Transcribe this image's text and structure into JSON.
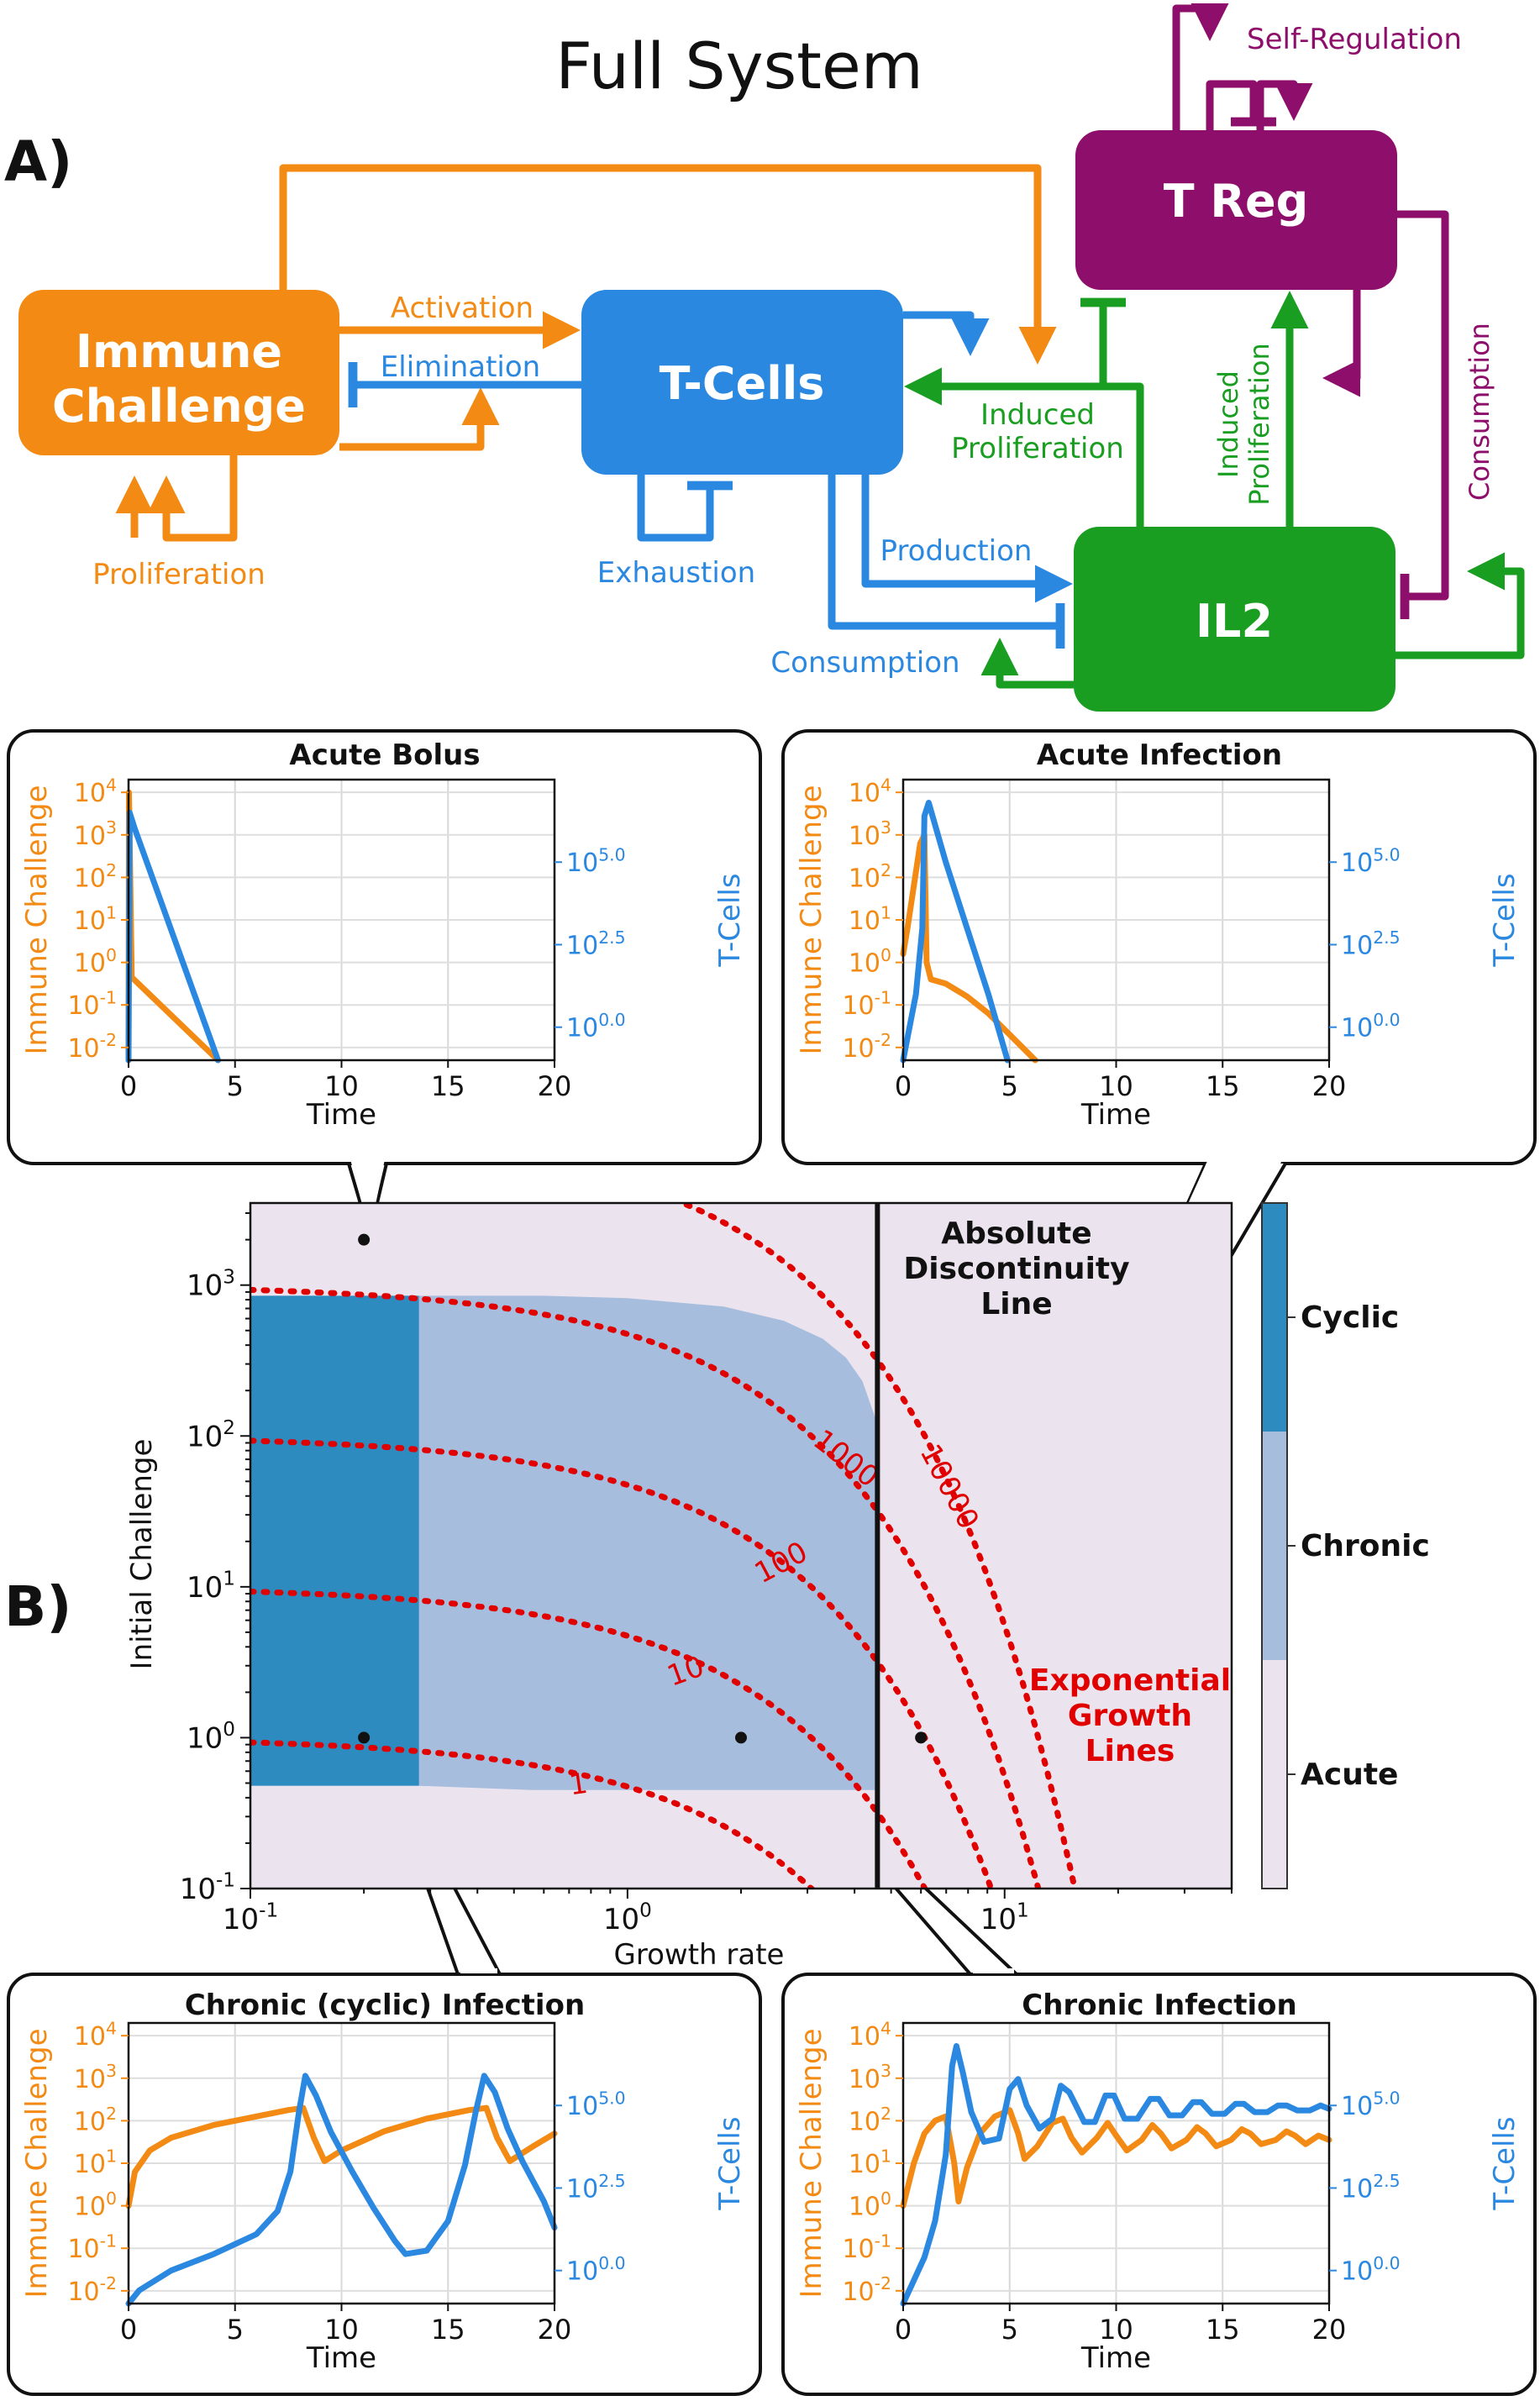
{
  "title": "Full System",
  "panel_labels": {
    "a": "A)",
    "b": "B)"
  },
  "colors": {
    "immune": "#f28a14",
    "tcell": "#2b88e0",
    "il2": "#1a9e22",
    "treg": "#8e0f6b",
    "cyclic": "#2e8bbf",
    "chronic": "#a7bddd",
    "acute": "#ebe4ef",
    "expline": "#e00000"
  },
  "diagram": {
    "nodes": {
      "immune": "Immune\nChallenge",
      "tcells": "T-Cells",
      "treg": "T Reg",
      "il2": "IL2"
    },
    "edges": {
      "activation": "Activation",
      "elimination": "Elimination",
      "proliferation": "Proliferation",
      "exhaustion": "Exhaustion",
      "production": "Production",
      "consumption_t": "Consumption",
      "induced_prolif_t": "Induced\nProliferation",
      "induced_prolif_treg": "Induced\nProliferation",
      "consumption_treg": "Consumption",
      "self_regulation": "Self-Regulation"
    }
  },
  "time_plots": {
    "xlabel": "Time",
    "ylabel_left": "Immune Challenge",
    "ylabel_right": "T-Cells",
    "xticks": [
      "0",
      "5",
      "10",
      "15",
      "20"
    ],
    "yticks_left": [
      "10^4",
      "10^3",
      "10^2",
      "10^1",
      "10^0",
      "10^-1",
      "10^-2"
    ],
    "yticks_right": [
      "10^5.0",
      "10^2.5",
      "10^0.0"
    ]
  },
  "phase": {
    "xlabel": "Growth rate",
    "ylabel": "Initial Challenge",
    "xticks": [
      "10^-1",
      "10^0",
      "10^1"
    ],
    "yticks": [
      "10^3",
      "10^2",
      "10^1",
      "10^0",
      "10^-1"
    ],
    "line_labels": [
      "1",
      "10",
      "100",
      "1000",
      "10000"
    ],
    "discontinuity_label": "Absolute\nDiscontinuity\nLine",
    "growth_lines_label": "Exponential\nGrowth\nLines",
    "legend": [
      "Cyclic",
      "Chronic",
      "Acute"
    ]
  },
  "chart_data": [
    {
      "type": "line",
      "title": "Acute Bolus",
      "xlabel": "Time",
      "ylabel": "Immune Challenge",
      "y2label": "T-Cells",
      "xlim": [
        0,
        20
      ],
      "ylim": [
        -2.3,
        4.3
      ],
      "y2lim": [
        -1.0,
        7.5
      ],
      "series": [
        {
          "name": "Immune Challenge",
          "axis": "left",
          "x": [
            0,
            0.02,
            0.15,
            4.2
          ],
          "y": [
            -2.3,
            4.0,
            -0.35,
            -2.3
          ]
        },
        {
          "name": "T-Cells",
          "axis": "right",
          "x": [
            0,
            0.05,
            0.3,
            4.2
          ],
          "y": [
            -1.0,
            6.5,
            6.0,
            -1.0
          ]
        }
      ]
    },
    {
      "type": "line",
      "title": "Acute Infection",
      "xlabel": "Time",
      "ylabel": "Immune Challenge",
      "y2label": "T-Cells",
      "xlim": [
        0,
        20
      ],
      "ylim": [
        -2.3,
        4.3
      ],
      "y2lim": [
        -1.0,
        7.5
      ],
      "series": [
        {
          "name": "Immune Challenge",
          "axis": "left",
          "x": [
            0,
            0.2,
            0.5,
            0.8,
            1.0,
            1.1,
            1.3,
            2.0,
            3.0,
            4.0,
            5.0,
            6.2
          ],
          "y": [
            0.2,
            0.8,
            1.8,
            2.8,
            3.0,
            0.0,
            -0.4,
            -0.5,
            -0.8,
            -1.2,
            -1.7,
            -2.3
          ]
        },
        {
          "name": "T-Cells",
          "axis": "right",
          "x": [
            0,
            0.3,
            0.6,
            0.9,
            1.0,
            1.2,
            2.0,
            3.0,
            4.0,
            4.9
          ],
          "y": [
            -1.0,
            0.0,
            1.0,
            3.0,
            6.4,
            6.8,
            5.0,
            3.0,
            1.0,
            -1.0
          ]
        }
      ]
    },
    {
      "type": "line",
      "title": "Chronic (cyclic) Infection",
      "xlabel": "Time",
      "ylabel": "Immune Challenge",
      "y2label": "T-Cells",
      "xlim": [
        0,
        20
      ],
      "ylim": [
        -2.3,
        4.3
      ],
      "y2lim": [
        -1.0,
        7.5
      ],
      "series": [
        {
          "name": "Immune Challenge",
          "axis": "left",
          "x": [
            0,
            0.3,
            1,
            2,
            4,
            6,
            7.5,
            8.2,
            8.7,
            9.2,
            10,
            12,
            14,
            16,
            16.8,
            17.3,
            17.9,
            19,
            20
          ],
          "y": [
            0.0,
            0.8,
            1.3,
            1.6,
            1.9,
            2.1,
            2.25,
            2.3,
            1.6,
            1.05,
            1.3,
            1.75,
            2.05,
            2.25,
            2.3,
            1.6,
            1.05,
            1.4,
            1.7
          ]
        },
        {
          "name": "T-Cells",
          "axis": "right",
          "x": [
            0,
            0.5,
            2,
            4,
            6,
            7,
            7.6,
            8.0,
            8.3,
            8.8,
            9.5,
            10.5,
            11.5,
            12.5,
            13.0,
            14.0,
            15.0,
            15.8,
            16.3,
            16.7,
            17.2,
            17.8,
            18.5,
            19.5,
            20
          ],
          "y": [
            -1.0,
            -0.6,
            0.0,
            0.5,
            1.1,
            1.8,
            3.0,
            4.8,
            5.9,
            5.3,
            4.2,
            3.0,
            1.9,
            0.9,
            0.5,
            0.6,
            1.5,
            3.2,
            4.8,
            5.9,
            5.4,
            4.3,
            3.3,
            2.1,
            1.3
          ]
        }
      ]
    },
    {
      "type": "line",
      "title": "Chronic Infection",
      "xlabel": "Time",
      "ylabel": "Immune Challenge",
      "y2label": "T-Cells",
      "xlim": [
        0,
        20
      ],
      "ylim": [
        -2.3,
        4.3
      ],
      "y2lim": [
        -1.0,
        7.5
      ],
      "series": [
        {
          "name": "Immune Challenge",
          "axis": "left",
          "x": [
            0,
            0.5,
            1,
            1.5,
            2.0,
            2.4,
            2.6,
            3.0,
            3.6,
            4.3,
            5.0,
            5.4,
            5.7,
            6.3,
            7.0,
            7.5,
            7.9,
            8.4,
            9.1,
            9.6,
            10.0,
            10.5,
            11.2,
            11.7,
            12.1,
            12.6,
            13.3,
            13.8,
            14.2,
            14.7,
            15.4,
            15.9,
            16.3,
            16.8,
            17.5,
            18.0,
            18.4,
            18.9,
            19.5,
            20
          ],
          "y": [
            0.0,
            1.0,
            1.7,
            2.0,
            2.1,
            1.0,
            0.1,
            0.9,
            1.7,
            2.1,
            2.25,
            1.7,
            1.1,
            1.4,
            1.95,
            2.05,
            1.6,
            1.25,
            1.6,
            1.95,
            1.65,
            1.3,
            1.55,
            1.9,
            1.7,
            1.35,
            1.55,
            1.85,
            1.7,
            1.4,
            1.55,
            1.8,
            1.7,
            1.45,
            1.55,
            1.75,
            1.65,
            1.45,
            1.65,
            1.55
          ]
        },
        {
          "name": "T-Cells",
          "axis": "right",
          "x": [
            0,
            0.5,
            1.0,
            1.5,
            2.0,
            2.3,
            2.5,
            2.8,
            3.2,
            3.8,
            4.5,
            5.0,
            5.4,
            5.8,
            6.4,
            7.0,
            7.4,
            7.8,
            8.5,
            9.0,
            9.5,
            9.9,
            10.4,
            11.0,
            11.6,
            12.0,
            12.5,
            13.1,
            13.6,
            14.0,
            14.5,
            15.1,
            15.6,
            16.0,
            16.5,
            17.1,
            17.6,
            18.0,
            18.5,
            19.1,
            19.6,
            20
          ],
          "y": [
            -1.0,
            -0.3,
            0.4,
            1.5,
            3.5,
            6.2,
            6.8,
            6.0,
            4.8,
            3.9,
            4.0,
            5.5,
            5.8,
            5.0,
            4.3,
            4.6,
            5.6,
            5.4,
            4.5,
            4.5,
            5.3,
            5.3,
            4.6,
            4.6,
            5.2,
            5.2,
            4.7,
            4.7,
            5.1,
            5.1,
            4.75,
            4.75,
            5.05,
            5.05,
            4.8,
            4.8,
            5.0,
            5.0,
            4.85,
            4.85,
            5.0,
            4.9
          ]
        }
      ]
    },
    {
      "type": "heatmap",
      "xlabel": "Growth rate",
      "ylabel": "Initial Challenge",
      "xscale": "log",
      "yscale": "log",
      "xlim": [
        0.1,
        40
      ],
      "ylim": [
        0.1,
        3500
      ],
      "regions": [
        "Cyclic",
        "Chronic",
        "Acute"
      ],
      "cyclic_region": {
        "x": [
          0.1,
          0.28
        ],
        "y": [
          0.48,
          850
        ]
      },
      "chronic_lower_boundary": [
        [
          0.28,
          0.48
        ],
        [
          0.56,
          0.45
        ],
        [
          4.6,
          0.45
        ]
      ],
      "chronic_upper_boundary": [
        [
          0.28,
          850
        ],
        [
          0.6,
          850
        ],
        [
          1.0,
          820
        ],
        [
          1.8,
          720
        ],
        [
          2.6,
          580
        ],
        [
          3.3,
          440
        ],
        [
          3.8,
          330
        ],
        [
          4.2,
          230
        ],
        [
          4.6,
          120
        ]
      ],
      "discontinuity_x": 4.6,
      "exponential_growth_lines": [
        {
          "label": "1",
          "x0": 0.1,
          "y0": 0.93
        },
        {
          "label": "10",
          "x0": 0.1,
          "y0": 9.3
        },
        {
          "label": "100",
          "x0": 0.1,
          "y0": 93
        },
        {
          "label": "1000",
          "x0": 0.1,
          "y0": 930
        },
        {
          "label": "10000",
          "x0": 0.1,
          "y0": 9300
        }
      ],
      "sample_points": [
        [
          0.2,
          2000
        ],
        [
          0.2,
          1.0
        ],
        [
          2.0,
          1.0
        ],
        [
          6.0,
          1.0
        ]
      ]
    }
  ]
}
